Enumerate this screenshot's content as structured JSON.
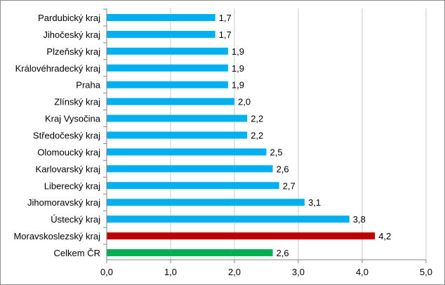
{
  "chart_data": {
    "type": "bar",
    "orientation": "horizontal",
    "title": "",
    "xlabel": "",
    "ylabel": "",
    "xlim": [
      0,
      5
    ],
    "x_ticks": [
      "0,0",
      "1,0",
      "2,0",
      "3,0",
      "4,0",
      "5,0"
    ],
    "grid": true,
    "legend": "none",
    "categories": [
      "Pardubický kraj",
      "Jihočeský kraj",
      "Plzeňský kraj",
      "Královéhradecký kraj",
      "Praha",
      "Zlínský kraj",
      "Kraj Vysočina",
      "Středočeský kraj",
      "Olomoucký kraj",
      "Karlovarský kraj",
      "Liberecký kraj",
      "Jihomoravský kraj",
      "Ústecký kraj",
      "Moravskoslezský kraj",
      "Celkem ČR"
    ],
    "values": [
      1.7,
      1.7,
      1.9,
      1.9,
      1.9,
      2.0,
      2.2,
      2.2,
      2.5,
      2.6,
      2.7,
      3.1,
      3.8,
      4.2,
      2.6
    ],
    "value_labels": [
      "1,7",
      "1,7",
      "1,9",
      "1,9",
      "1,9",
      "2,0",
      "2,2",
      "2,2",
      "2,5",
      "2,6",
      "2,7",
      "3,1",
      "3,8",
      "4,2",
      "2,6"
    ],
    "colors": [
      "#00b0f0",
      "#00b0f0",
      "#00b0f0",
      "#00b0f0",
      "#00b0f0",
      "#00b0f0",
      "#00b0f0",
      "#00b0f0",
      "#00b0f0",
      "#00b0f0",
      "#00b0f0",
      "#00b0f0",
      "#00b0f0",
      "#c00000",
      "#00b050"
    ]
  }
}
